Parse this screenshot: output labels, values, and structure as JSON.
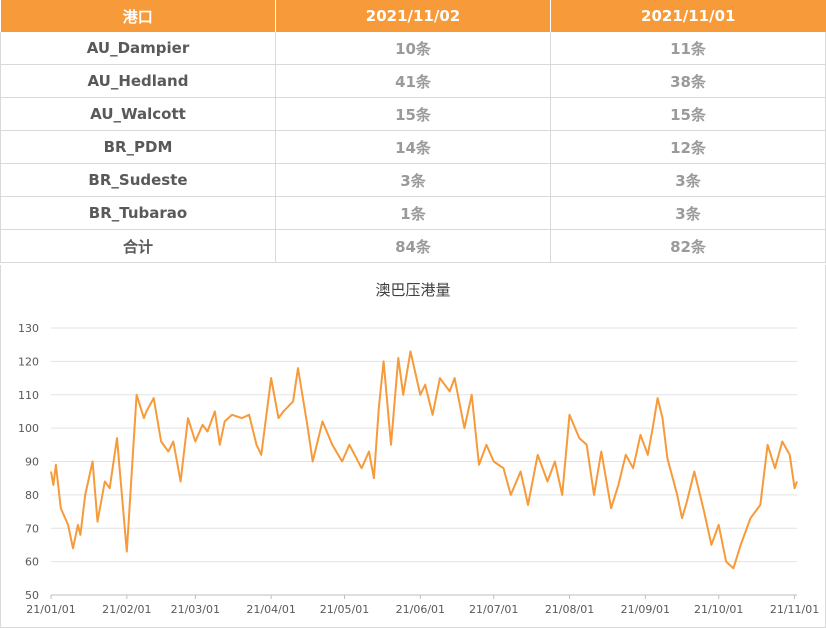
{
  "table": {
    "headers": [
      "港口",
      "2021/11/02",
      "2021/11/01"
    ],
    "rows": [
      {
        "port": "AU_Dampier",
        "v1102": "10条",
        "v1101": "11条"
      },
      {
        "port": "AU_Hedland",
        "v1102": "41条",
        "v1101": "38条"
      },
      {
        "port": "AU_Walcott",
        "v1102": "15条",
        "v1101": "15条"
      },
      {
        "port": "BR_PDM",
        "v1102": "14条",
        "v1101": "12条"
      },
      {
        "port": "BR_Sudeste",
        "v1102": "3条",
        "v1101": "3条"
      },
      {
        "port": "BR_Tubarao",
        "v1102": "1条",
        "v1101": "3条"
      },
      {
        "port": "合计",
        "v1102": "84条",
        "v1101": "82条"
      }
    ]
  },
  "chart_data": {
    "type": "line",
    "title": "澳巴压港量",
    "xlabel": "",
    "ylabel": "",
    "ylim": [
      50,
      130
    ],
    "yticks": [
      50,
      60,
      70,
      80,
      90,
      100,
      110,
      120,
      130
    ],
    "xticks": [
      "21/01/01",
      "21/02/01",
      "21/03/01",
      "21/04/01",
      "21/05/01",
      "21/06/01",
      "21/07/01",
      "21/08/01",
      "21/09/01",
      "21/10/01",
      "21/11/01"
    ],
    "xlim": [
      "2021-01-01",
      "2021-11-02"
    ],
    "grid": "horizontal",
    "line_color": "#f79a3a",
    "series": [
      {
        "x": [
          "2021-01-01",
          "2021-01-02",
          "2021-01-03",
          "2021-01-05",
          "2021-01-08",
          "2021-01-10",
          "2021-01-12",
          "2021-01-13",
          "2021-01-15",
          "2021-01-18",
          "2021-01-20",
          "2021-01-23",
          "2021-01-25",
          "2021-01-28",
          "2021-02-01",
          "2021-02-05",
          "2021-02-08",
          "2021-02-09",
          "2021-02-12",
          "2021-02-15",
          "2021-02-18",
          "2021-02-20",
          "2021-02-23",
          "2021-02-26",
          "2021-03-01",
          "2021-03-04",
          "2021-03-06",
          "2021-03-09",
          "2021-03-11",
          "2021-03-13",
          "2021-03-16",
          "2021-03-20",
          "2021-03-23",
          "2021-03-26",
          "2021-03-28",
          "2021-04-01",
          "2021-04-04",
          "2021-04-06",
          "2021-04-10",
          "2021-04-12",
          "2021-04-16",
          "2021-04-18",
          "2021-04-22",
          "2021-04-26",
          "2021-04-30",
          "2021-05-03",
          "2021-05-08",
          "2021-05-11",
          "2021-05-13",
          "2021-05-15",
          "2021-05-17",
          "2021-05-20",
          "2021-05-23",
          "2021-05-25",
          "2021-05-28",
          "2021-06-01",
          "2021-06-03",
          "2021-06-06",
          "2021-06-09",
          "2021-06-13",
          "2021-06-15",
          "2021-06-19",
          "2021-06-22",
          "2021-06-25",
          "2021-06-28",
          "2021-07-01",
          "2021-07-05",
          "2021-07-08",
          "2021-07-12",
          "2021-07-15",
          "2021-07-19",
          "2021-07-23",
          "2021-07-26",
          "2021-07-29",
          "2021-08-01",
          "2021-08-05",
          "2021-08-08",
          "2021-08-11",
          "2021-08-14",
          "2021-08-18",
          "2021-08-21",
          "2021-08-24",
          "2021-08-27",
          "2021-08-30",
          "2021-09-02",
          "2021-09-04",
          "2021-09-06",
          "2021-09-08",
          "2021-09-10",
          "2021-09-14",
          "2021-09-16",
          "2021-09-18",
          "2021-09-21",
          "2021-09-25",
          "2021-09-28",
          "2021-10-01",
          "2021-10-04",
          "2021-10-07",
          "2021-10-10",
          "2021-10-14",
          "2021-10-18",
          "2021-10-21",
          "2021-10-24",
          "2021-10-27",
          "2021-10-30",
          "2021-11-01",
          "2021-11-02"
        ],
        "values": [
          87,
          83,
          89,
          76,
          71,
          64,
          71,
          68,
          80,
          90,
          72,
          84,
          82,
          97,
          63,
          110,
          103,
          105,
          109,
          96,
          93,
          96,
          84,
          103,
          96,
          101,
          99,
          105,
          95,
          102,
          104,
          103,
          104,
          95,
          92,
          115,
          103,
          105,
          108,
          118,
          100,
          90,
          102,
          95,
          90,
          95,
          88,
          93,
          85,
          106,
          120,
          95,
          121,
          110,
          123,
          110,
          113,
          104,
          115,
          111,
          115,
          100,
          110,
          89,
          95,
          90,
          88,
          80,
          87,
          77,
          92,
          84,
          90,
          80,
          104,
          97,
          95,
          80,
          93,
          76,
          83,
          92,
          88,
          98,
          92,
          100,
          109,
          103,
          91,
          80,
          73,
          78,
          87,
          75,
          65,
          71,
          60,
          58,
          65,
          73,
          77,
          95,
          88,
          96,
          92,
          82,
          84
        ]
      }
    ]
  }
}
